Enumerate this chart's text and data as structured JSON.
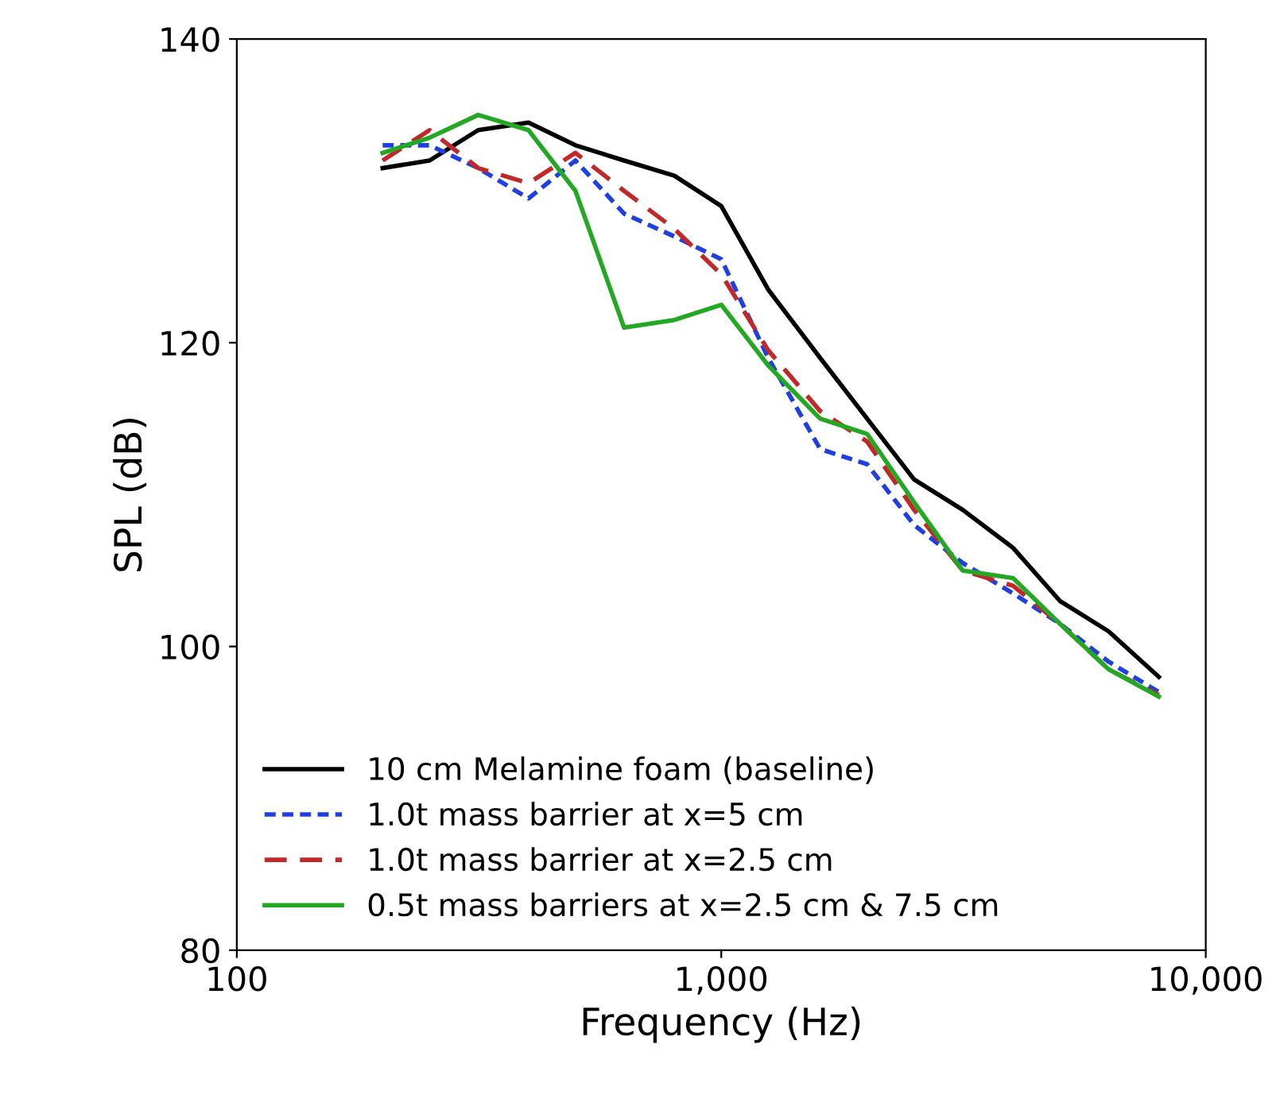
{
  "chart_data": {
    "type": "line",
    "xlabel": "Frequency (Hz)",
    "ylabel": "SPL (dB)",
    "log": "x",
    "x": [
      200,
      250,
      315,
      400,
      500,
      630,
      800,
      1000,
      1250,
      1600,
      2000,
      2500,
      3150,
      4000,
      5000,
      6300,
      8000
    ],
    "series": [
      {
        "name": "10 cm Melamine foam (baseline)",
        "color": "#000000",
        "line_style": "solid",
        "values": [
          131.5,
          132,
          134,
          134.5,
          133,
          132,
          131,
          129,
          123.5,
          119,
          115,
          111,
          109,
          106.5,
          103,
          101,
          98
        ]
      },
      {
        "name": "1.0t mass barrier at x=5 cm",
        "color": "#1f3fe0",
        "line_style": "dotted",
        "values": [
          133,
          133,
          131.5,
          129.5,
          132,
          128.5,
          127,
          125.5,
          119,
          113,
          112,
          108,
          105.5,
          103.5,
          101.5,
          99,
          97
        ]
      },
      {
        "name": "1.0t mass barrier at x=2.5 cm",
        "color": "#c0282a",
        "line_style": "dashed",
        "values": [
          132,
          134,
          131.5,
          130.5,
          132.5,
          130,
          127.5,
          124.5,
          119.5,
          115.5,
          113.5,
          109,
          105,
          104,
          101.5,
          98.5,
          96.8
        ]
      },
      {
        "name": "0.5t mass barriers at x=2.5 cm & 7.5 cm",
        "color": "#22a822",
        "line_style": "solid",
        "values": [
          132.5,
          133.5,
          135,
          134,
          130,
          121,
          121.5,
          122.5,
          118.5,
          115,
          114,
          109.5,
          105,
          104.5,
          101.5,
          98.5,
          96.7
        ]
      }
    ],
    "xlim": [
      100,
      10000
    ],
    "xticks": [
      {
        "value": 100,
        "label": "100"
      },
      {
        "value": 1000,
        "label": "1,000"
      },
      {
        "value": 10000,
        "label": "10,000"
      }
    ],
    "ylim": [
      80,
      140
    ],
    "yticks": [
      80,
      100,
      120,
      140
    ],
    "grid": false,
    "legend": "bottom left",
    "marker": "none"
  }
}
